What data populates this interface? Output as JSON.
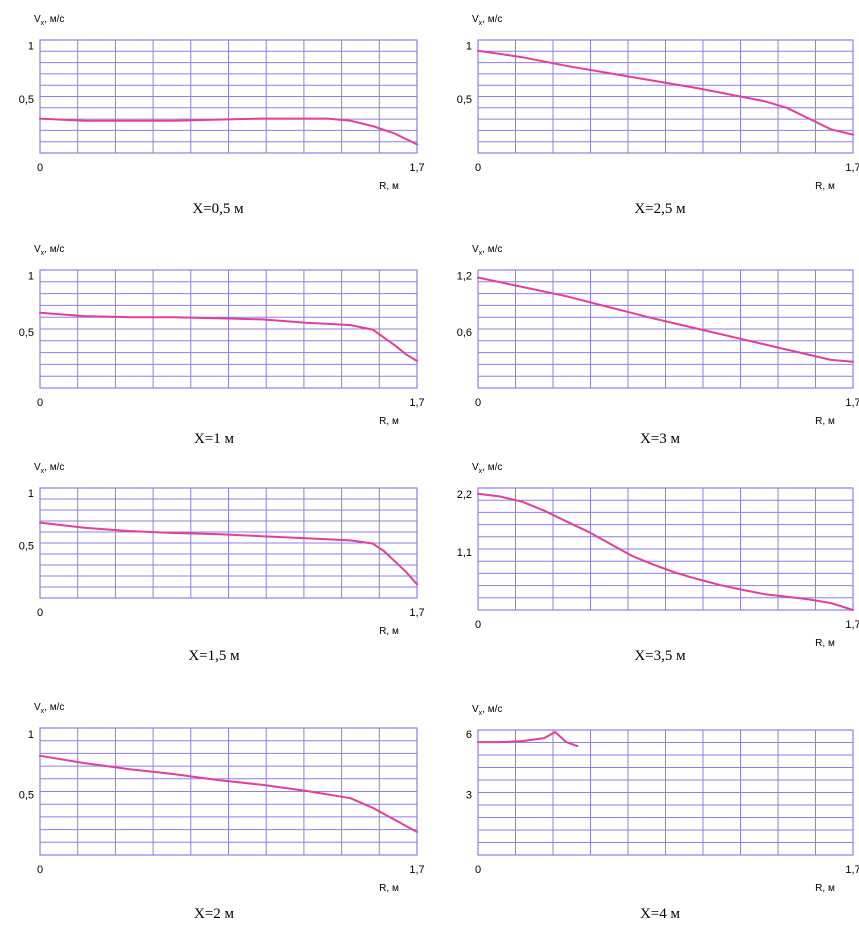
{
  "colors": {
    "grid": "#8f7fe6",
    "line": "#e0409a",
    "axis_text": "#000000",
    "background": "#ffffff"
  },
  "chart_data": [
    {
      "type": "line",
      "title": "X=0,5 м",
      "ylabel": "Vx, м/с",
      "ylabel_main": "V",
      "ylabel_sub": "x",
      "ylabel_unit": " м/с",
      "xlabel": "R, м",
      "xlim": [
        0,
        1.7
      ],
      "ylim": [
        0,
        1.05
      ],
      "yticks": [
        {
          "v": 1,
          "label": "1"
        },
        {
          "v": 0.5,
          "label": "0,5"
        }
      ],
      "xticks": [
        {
          "v": 0,
          "label": "0"
        },
        {
          "v": 1.7,
          "label": "1,7"
        }
      ],
      "grid": true,
      "series": [
        {
          "x": [
            0,
            0.2,
            0.4,
            0.6,
            0.8,
            1.0,
            1.2,
            1.3,
            1.4,
            1.5,
            1.6,
            1.7
          ],
          "y": [
            0.32,
            0.3,
            0.3,
            0.3,
            0.31,
            0.32,
            0.32,
            0.32,
            0.3,
            0.25,
            0.18,
            0.08
          ]
        }
      ]
    },
    {
      "type": "line",
      "title": "X=2,5 м",
      "ylabel": "Vx, м/с",
      "ylabel_main": "V",
      "ylabel_sub": "x",
      "ylabel_unit": " м/с",
      "xlabel": "R, м",
      "xlim": [
        0,
        1.7
      ],
      "ylim": [
        0,
        1.05
      ],
      "yticks": [
        {
          "v": 1,
          "label": "1"
        },
        {
          "v": 0.5,
          "label": "0,5"
        }
      ],
      "xticks": [
        {
          "v": 0,
          "label": "0"
        },
        {
          "v": 1.7,
          "label": "1,7"
        }
      ],
      "grid": true,
      "series": [
        {
          "x": [
            0,
            0.2,
            0.4,
            0.6,
            0.8,
            1.0,
            1.2,
            1.3,
            1.4,
            1.5,
            1.6,
            1.7
          ],
          "y": [
            0.95,
            0.89,
            0.81,
            0.74,
            0.67,
            0.6,
            0.52,
            0.48,
            0.42,
            0.32,
            0.22,
            0.17
          ]
        }
      ]
    },
    {
      "type": "line",
      "title": "X=1 м",
      "ylabel": "Vx, м/с",
      "ylabel_main": "V",
      "ylabel_sub": "x",
      "ylabel_unit": " м/с",
      "xlabel": "R, м",
      "xlim": [
        0,
        1.7
      ],
      "ylim": [
        0,
        1.05
      ],
      "yticks": [
        {
          "v": 1,
          "label": "1"
        },
        {
          "v": 0.5,
          "label": "0,5"
        }
      ],
      "xticks": [
        {
          "v": 0,
          "label": "0"
        },
        {
          "v": 1.7,
          "label": "1,7"
        }
      ],
      "grid": true,
      "series": [
        {
          "x": [
            0,
            0.2,
            0.4,
            0.6,
            0.8,
            1.0,
            1.2,
            1.3,
            1.4,
            1.5,
            1.55,
            1.6,
            1.65,
            1.7
          ],
          "y": [
            0.67,
            0.64,
            0.63,
            0.63,
            0.62,
            0.61,
            0.58,
            0.57,
            0.56,
            0.52,
            0.45,
            0.38,
            0.3,
            0.24
          ]
        }
      ]
    },
    {
      "type": "line",
      "title": "X=3 м",
      "ylabel": "Vx, м/с",
      "ylabel_main": "V",
      "ylabel_sub": "x",
      "ylabel_unit": " м/с",
      "xlabel": "R, м",
      "xlim": [
        0,
        1.7
      ],
      "ylim": [
        0,
        1.26
      ],
      "yticks": [
        {
          "v": 1.2,
          "label": "1,2"
        },
        {
          "v": 0.6,
          "label": "0,6"
        }
      ],
      "xticks": [
        {
          "v": 0,
          "label": "0"
        },
        {
          "v": 1.7,
          "label": "1,7"
        }
      ],
      "grid": true,
      "series": [
        {
          "x": [
            0,
            0.2,
            0.4,
            0.6,
            0.8,
            1.0,
            1.2,
            1.4,
            1.6,
            1.7
          ],
          "y": [
            1.18,
            1.08,
            0.98,
            0.86,
            0.74,
            0.63,
            0.52,
            0.41,
            0.3,
            0.28
          ]
        }
      ]
    },
    {
      "type": "line",
      "title": "X=1,5 м",
      "ylabel": "Vx, м/с",
      "ylabel_main": "V",
      "ylabel_sub": "x",
      "ylabel_unit": " м/с",
      "xlabel": "R, м",
      "xlim": [
        0,
        1.7
      ],
      "ylim": [
        0,
        1.05
      ],
      "yticks": [
        {
          "v": 1,
          "label": "1"
        },
        {
          "v": 0.5,
          "label": "0,5"
        }
      ],
      "xticks": [
        {
          "v": 0,
          "label": "0"
        },
        {
          "v": 1.7,
          "label": "1,7"
        }
      ],
      "grid": true,
      "series": [
        {
          "x": [
            0,
            0.2,
            0.4,
            0.6,
            0.8,
            1.0,
            1.2,
            1.4,
            1.5,
            1.55,
            1.6,
            1.65,
            1.7
          ],
          "y": [
            0.72,
            0.67,
            0.64,
            0.62,
            0.61,
            0.59,
            0.57,
            0.55,
            0.52,
            0.45,
            0.35,
            0.25,
            0.13
          ]
        }
      ]
    },
    {
      "type": "line",
      "title": "X=3,5 м",
      "ylabel": "Vx, м/с",
      "ylabel_main": "V",
      "ylabel_sub": "x",
      "ylabel_unit": " м/с",
      "xlabel": "R, м",
      "xlim": [
        0,
        1.7
      ],
      "ylim": [
        0,
        2.31
      ],
      "yticks": [
        {
          "v": 2.2,
          "label": "2,2"
        },
        {
          "v": 1.1,
          "label": "1,1"
        }
      ],
      "xticks": [
        {
          "v": 0,
          "label": "0"
        },
        {
          "v": 1.7,
          "label": "1,7"
        }
      ],
      "grid": true,
      "series": [
        {
          "x": [
            0,
            0.1,
            0.2,
            0.3,
            0.4,
            0.5,
            0.6,
            0.7,
            0.8,
            0.9,
            1.0,
            1.1,
            1.2,
            1.3,
            1.4,
            1.5,
            1.6,
            1.7
          ],
          "y": [
            2.2,
            2.15,
            2.05,
            1.88,
            1.68,
            1.48,
            1.25,
            1.02,
            0.85,
            0.7,
            0.58,
            0.47,
            0.38,
            0.3,
            0.25,
            0.2,
            0.13,
            0.0
          ]
        }
      ]
    },
    {
      "type": "line",
      "title": "X=2 м",
      "ylabel": "Vx, м/с",
      "ylabel_main": "V",
      "ylabel_sub": "x",
      "ylabel_unit": " м/с",
      "xlabel": "R, м",
      "xlim": [
        0,
        1.7
      ],
      "ylim": [
        0,
        1.05
      ],
      "yticks": [
        {
          "v": 1,
          "label": "1"
        },
        {
          "v": 0.5,
          "label": "0,5"
        }
      ],
      "xticks": [
        {
          "v": 0,
          "label": "0"
        },
        {
          "v": 1.7,
          "label": "1,7"
        }
      ],
      "grid": true,
      "series": [
        {
          "x": [
            0,
            0.2,
            0.4,
            0.6,
            0.8,
            1.0,
            1.2,
            1.4,
            1.5,
            1.6,
            1.7
          ],
          "y": [
            0.82,
            0.76,
            0.71,
            0.67,
            0.62,
            0.58,
            0.53,
            0.47,
            0.39,
            0.29,
            0.19
          ]
        }
      ]
    },
    {
      "type": "line",
      "title": "X=4 м",
      "ylabel": "Vx, м/с",
      "ylabel_main": "V",
      "ylabel_sub": "x",
      "ylabel_unit": " м/с",
      "xlabel": "R, м",
      "xlim": [
        0,
        1.7
      ],
      "ylim": [
        0,
        6.2
      ],
      "yticks": [
        {
          "v": 6,
          "label": "6"
        },
        {
          "v": 3,
          "label": "3"
        }
      ],
      "xticks": [
        {
          "v": 0,
          "label": "0"
        },
        {
          "v": 1.7,
          "label": "1,7"
        }
      ],
      "grid": true,
      "series": [
        {
          "x": [
            0,
            0.1,
            0.2,
            0.3,
            0.35,
            0.4,
            0.45
          ],
          "y": [
            5.6,
            5.6,
            5.65,
            5.8,
            6.1,
            5.6,
            5.4
          ]
        }
      ]
    }
  ]
}
